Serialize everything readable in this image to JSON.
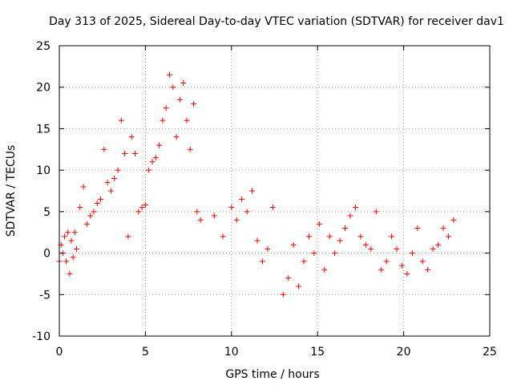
{
  "chart_data": {
    "type": "scatter",
    "title": "Day 313 of 2025, Sidereal Day-to-day VTEC variation (SDTVAR) for receiver dav1",
    "xlabel": "GPS time / hours",
    "ylabel": "SDTVAR / TECUs",
    "xlim": [
      0,
      25
    ],
    "ylim": [
      -10,
      25
    ],
    "xticks": [
      0,
      5,
      10,
      15,
      20,
      25
    ],
    "yticks": [
      -10,
      -5,
      0,
      5,
      10,
      15,
      20,
      25
    ],
    "xtick_labels": [
      "0",
      "5",
      "10",
      "15",
      "20",
      "25"
    ],
    "ytick_labels": [
      "-10",
      "-5",
      "0",
      "5",
      "10",
      "15",
      "20",
      "25"
    ],
    "grid": true,
    "marker": "+",
    "color": "#ff0000",
    "series": [
      {
        "name": "SDTVAR",
        "x": [
          0.0,
          0.1,
          0.2,
          0.3,
          0.4,
          0.5,
          0.6,
          0.7,
          0.8,
          0.9,
          1.0,
          1.2,
          1.4,
          1.6,
          1.8,
          2.0,
          2.2,
          2.4,
          2.6,
          2.8,
          3.0,
          3.2,
          3.4,
          3.6,
          3.8,
          4.0,
          4.2,
          4.4,
          4.6,
          4.8,
          5.0,
          5.2,
          5.4,
          5.6,
          5.8,
          6.0,
          6.2,
          6.4,
          6.6,
          6.8,
          7.0,
          7.2,
          7.4,
          7.6,
          7.8,
          8.0,
          8.2,
          9.0,
          9.5,
          10.0,
          10.3,
          10.6,
          10.9,
          11.2,
          11.5,
          11.8,
          12.1,
          12.4,
          13.0,
          13.3,
          13.6,
          13.9,
          14.2,
          14.5,
          14.8,
          15.1,
          15.4,
          15.7,
          16.0,
          16.3,
          16.6,
          16.9,
          17.2,
          17.5,
          17.8,
          18.1,
          18.4,
          18.7,
          19.0,
          19.3,
          19.6,
          19.9,
          20.2,
          20.5,
          20.8,
          21.1,
          21.4,
          21.7,
          22.0,
          22.3,
          22.6,
          22.9
        ],
        "y": [
          -1.0,
          1.0,
          0.0,
          2.0,
          -1.0,
          2.5,
          -2.5,
          1.5,
          -0.5,
          2.5,
          0.5,
          5.5,
          8.0,
          3.5,
          4.5,
          5.0,
          6.0,
          6.5,
          12.5,
          8.5,
          7.5,
          9.0,
          10.0,
          16.0,
          12.0,
          2.0,
          14.0,
          12.0,
          5.0,
          5.5,
          5.8,
          10.0,
          11.0,
          11.5,
          13.0,
          16.0,
          17.5,
          21.5,
          20.0,
          14.0,
          18.5,
          20.5,
          16.0,
          12.5,
          18.0,
          5.0,
          4.0,
          4.5,
          2.0,
          5.5,
          4.0,
          6.5,
          5.0,
          7.5,
          1.5,
          -1.0,
          0.5,
          5.5,
          -5.0,
          -3.0,
          1.0,
          -4.0,
          -1.0,
          2.0,
          0.0,
          3.5,
          -2.0,
          2.0,
          0.0,
          1.5,
          3.0,
          4.5,
          5.5,
          2.0,
          1.0,
          0.5,
          5.0,
          -2.0,
          -1.0,
          2.0,
          0.5,
          -1.5,
          -2.5,
          0.0,
          3.0,
          -1.0,
          -2.0,
          0.5,
          1.0,
          3.0,
          2.0,
          4.0
        ]
      }
    ]
  }
}
